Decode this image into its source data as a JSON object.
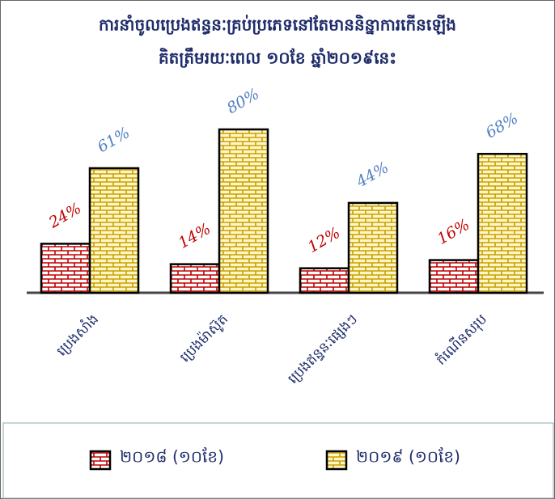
{
  "chart_data": {
    "type": "bar",
    "title": "ការនាំចូលប្រេងឥន្ធនៈគ្រប់ប្រភេទនៅតែមាននិន្នាការកើនឡើង",
    "subtitle": "គិតត្រឹមរយៈពេល ១០ខែ ឆ្នាំ២០១៩នេះ",
    "categories": [
      "ប្រេងសាំង",
      "ប្រេងម៉ាស៊ូត",
      "ប្រេងឥន្ធនៈផ្សេងៗ",
      "កំណើនសរុប"
    ],
    "series": [
      {
        "name": "២០១៨ (១០ខែ)",
        "color": "#c00000",
        "values": [
          24,
          14,
          12,
          16
        ],
        "value_labels": [
          "24%",
          "14%",
          "12%",
          "16%"
        ]
      },
      {
        "name": "២០១៩ (១០ខែ)",
        "color": "#c8a000",
        "values": [
          61,
          80,
          44,
          68
        ],
        "value_labels": [
          "61%",
          "80%",
          "44%",
          "68%"
        ]
      }
    ]
  }
}
